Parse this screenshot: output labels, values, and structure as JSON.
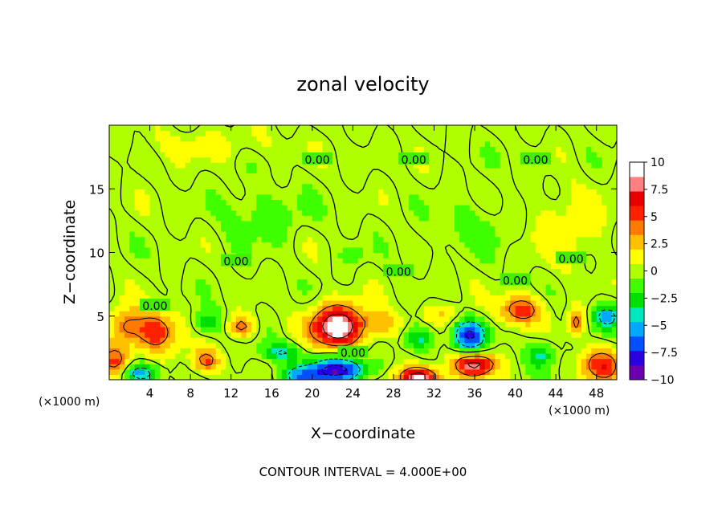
{
  "chart_data": {
    "type": "heatmap",
    "title": "zonal velocity",
    "xlabel": "X−coordinate",
    "ylabel": "Z−coordinate",
    "x_unit_left": "(×1000 m)",
    "x_unit_right": "(×1000 m)",
    "footer": "CONTOUR INTERVAL = 4.000E+00",
    "xlim": [
      0,
      50
    ],
    "ylim": [
      0,
      20
    ],
    "x_ticks": [
      4,
      8,
      12,
      16,
      20,
      24,
      28,
      32,
      36,
      40,
      44,
      48
    ],
    "y_ticks": [
      5,
      10,
      15
    ],
    "contour_labels": [
      {
        "text": "0.00",
        "x": 20.5,
        "y": 17.3
      },
      {
        "text": "0.00",
        "x": 30,
        "y": 17.3
      },
      {
        "text": "0.00",
        "x": 42,
        "y": 17.3
      },
      {
        "text": "0.00",
        "x": 12.5,
        "y": 9.3
      },
      {
        "text": "0.00",
        "x": 28.5,
        "y": 8.5
      },
      {
        "text": "0.00",
        "x": 40,
        "y": 7.8
      },
      {
        "text": "0.00",
        "x": 45.5,
        "y": 9.5
      },
      {
        "text": "0.00",
        "x": 4.5,
        "y": 5.8
      },
      {
        "text": "0.00",
        "x": 24,
        "y": 2.1
      }
    ],
    "features": [
      {
        "x": 4.5,
        "y": 3.8,
        "v": 6,
        "rx": 2.2,
        "ry": 1.6
      },
      {
        "x": 0.5,
        "y": 1.5,
        "v": 5,
        "rx": 1.5,
        "ry": 1.2
      },
      {
        "x": 1.5,
        "y": 4.2,
        "v": 4,
        "rx": 1.5,
        "ry": 1.5
      },
      {
        "x": 3,
        "y": 0.5,
        "v": -6,
        "rx": 1.8,
        "ry": 0.8
      },
      {
        "x": 9.5,
        "y": 1.5,
        "v": 5,
        "rx": 1.4,
        "ry": 0.9
      },
      {
        "x": 9.5,
        "y": 4.5,
        "v": -3,
        "rx": 1.4,
        "ry": 1.0
      },
      {
        "x": 13,
        "y": 4.2,
        "v": 5,
        "rx": 1.2,
        "ry": 0.8
      },
      {
        "x": 17,
        "y": 2.2,
        "v": -4,
        "rx": 2.0,
        "ry": 0.7
      },
      {
        "x": 22.5,
        "y": 4.2,
        "v": 11,
        "rx": 2.6,
        "ry": 1.6
      },
      {
        "x": 22.5,
        "y": 0.8,
        "v": -9,
        "rx": 2.8,
        "ry": 1.0
      },
      {
        "x": 19,
        "y": 0.3,
        "v": -5,
        "rx": 2.0,
        "ry": 0.8
      },
      {
        "x": 30.5,
        "y": 0.2,
        "v": 10,
        "rx": 2.0,
        "ry": 0.8
      },
      {
        "x": 30.5,
        "y": 3.3,
        "v": -4,
        "rx": 1.5,
        "ry": 0.9
      },
      {
        "x": 35.5,
        "y": 3.5,
        "v": -8,
        "rx": 1.6,
        "ry": 1.2
      },
      {
        "x": 36,
        "y": 1.2,
        "v": 9,
        "rx": 2.0,
        "ry": 0.9
      },
      {
        "x": 40.5,
        "y": 5.5,
        "v": 6,
        "rx": 2.0,
        "ry": 1.1
      },
      {
        "x": 42.5,
        "y": 2.0,
        "v": -4,
        "rx": 1.3,
        "ry": 1.0
      },
      {
        "x": 46,
        "y": 4.5,
        "v": 5,
        "rx": 0.8,
        "ry": 1.0
      },
      {
        "x": 48.5,
        "y": 1.2,
        "v": 6,
        "rx": 2.0,
        "ry": 1.3
      },
      {
        "x": 49,
        "y": 5.0,
        "v": -5,
        "rx": 1.5,
        "ry": 1.0
      },
      {
        "x": 27,
        "y": 4.5,
        "v": 3,
        "rx": 1.8,
        "ry": 1.0
      },
      {
        "x": 33,
        "y": 5.2,
        "v": 2,
        "rx": 2.0,
        "ry": 0.8
      },
      {
        "x": 24,
        "y": 9.8,
        "v": -2,
        "rx": 1.0,
        "ry": 0.6
      },
      {
        "x": 15,
        "y": 13,
        "v": -1.5,
        "rx": 4.0,
        "ry": 2.0
      },
      {
        "x": 36,
        "y": 12,
        "v": -1.2,
        "rx": 4.0,
        "ry": 2.0
      },
      {
        "x": 45,
        "y": 12,
        "v": 1.5,
        "rx": 4.0,
        "ry": 3.0
      },
      {
        "x": 10,
        "y": 18.5,
        "v": 1.0,
        "rx": 8.0,
        "ry": 1.2
      }
    ],
    "colorbar": {
      "ticks": [
        10,
        7.5,
        5,
        2.5,
        0,
        -2.5,
        -5,
        -7.5,
        -10
      ],
      "tick_labels": [
        "10",
        "7.5",
        "5",
        "2.5",
        "0",
        "−2.5",
        "−5",
        "−7.5",
        "−10"
      ],
      "colors": [
        "#6a00b0",
        "#2a00e0",
        "#0050ff",
        "#00a8ff",
        "#00e8c0",
        "#00e000",
        "#40ff00",
        "#b0ff00",
        "#ffff00",
        "#ffc000",
        "#ff7a00",
        "#ff2000",
        "#e80000",
        "#ff8080",
        "#ffffff"
      ]
    }
  }
}
